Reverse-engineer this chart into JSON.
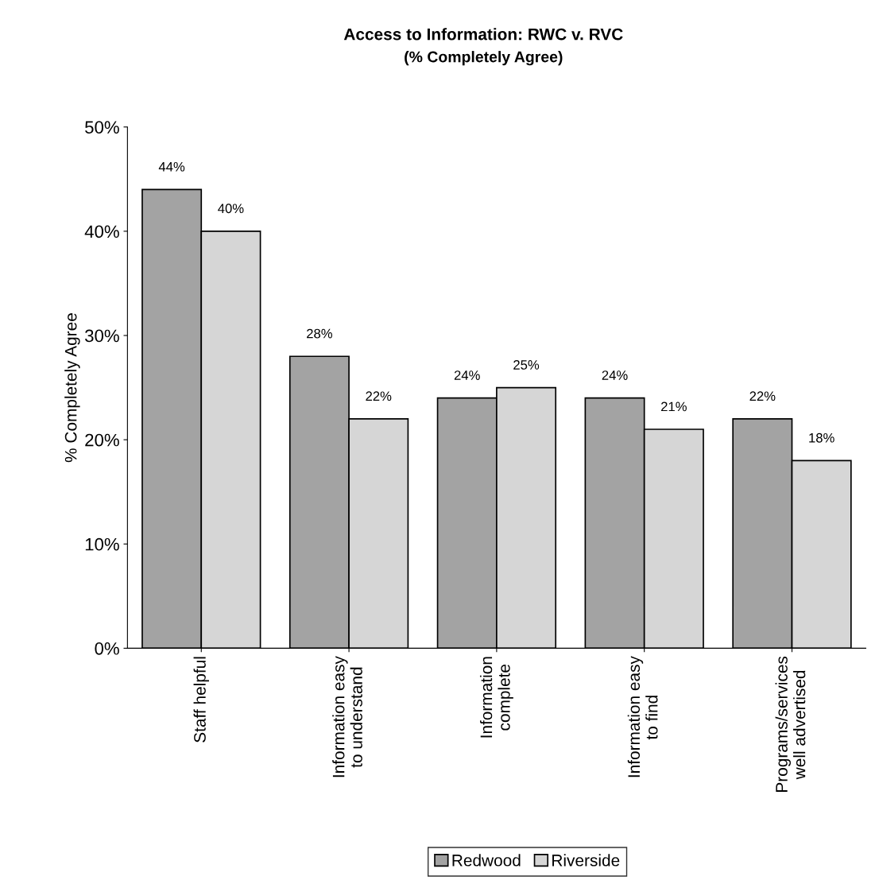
{
  "chart_data": {
    "type": "bar",
    "title": "Access to Information: RWC v. RVC",
    "subtitle": "(% Completely Agree)",
    "ylabel": "% Completely Agree",
    "categories": [
      "Staff helpful",
      "Information easy\nto understand",
      "Information\ncomplete",
      "Information easy\nto find",
      "Programs/services\nwell advertised"
    ],
    "series": [
      {
        "name": "Redwood",
        "color": "#a3a3a3",
        "values": [
          44,
          28,
          24,
          24,
          22
        ],
        "value_labels": [
          "44%",
          "28%",
          "24%",
          "24%",
          "22%"
        ]
      },
      {
        "name": "Riverside",
        "color": "#d6d6d6",
        "values": [
          40,
          22,
          25,
          21,
          18
        ],
        "value_labels": [
          "40%",
          "22%",
          "25%",
          "21%",
          "18%"
        ]
      }
    ],
    "ylim": [
      0,
      50
    ],
    "yticks": [
      {
        "value": 0,
        "label": "0%"
      },
      {
        "value": 10,
        "label": "10%"
      },
      {
        "value": 20,
        "label": "20%"
      },
      {
        "value": 30,
        "label": "30%"
      },
      {
        "value": 40,
        "label": "40%"
      },
      {
        "value": 50,
        "label": "50%"
      }
    ],
    "grid": false,
    "legend": "bottom"
  }
}
